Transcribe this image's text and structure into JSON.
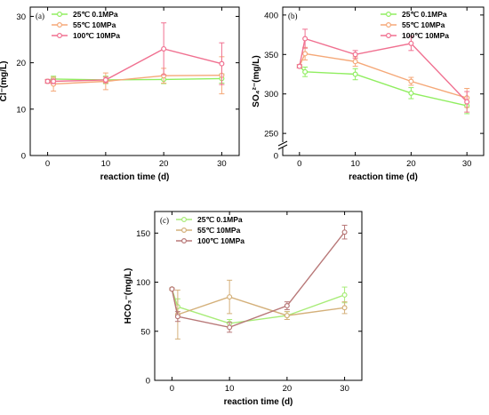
{
  "chart_data": [
    {
      "type": "line",
      "panel_label": "(a)",
      "xlabel": "reaction time (d)",
      "ylabel": "Cl⁻(mg/L)",
      "x_ticks": [
        "0",
        "10",
        "20",
        "30"
      ],
      "y_ticks": [
        "0",
        "10",
        "20",
        "30"
      ],
      "xlim": [
        -3,
        33
      ],
      "ylim": [
        0,
        32
      ],
      "y_break": false,
      "legend_position": "top-left",
      "series": [
        {
          "name": "25℃ 0.1MPa",
          "color": "#90ee60",
          "x": [
            0,
            1,
            10,
            20,
            30
          ],
          "y": [
            16.0,
            16.5,
            16.3,
            16.4,
            16.6
          ],
          "err": [
            0.4,
            0.6,
            0.8,
            0.9,
            1.0
          ]
        },
        {
          "name": "55℃ 10MPa",
          "color": "#f5a878",
          "x": [
            0,
            1,
            10,
            20,
            30
          ],
          "y": [
            16.0,
            15.4,
            16.0,
            17.2,
            17.3
          ],
          "err": [
            0.4,
            1.5,
            1.8,
            1.6,
            4.0
          ]
        },
        {
          "name": "100℃ 10MPa",
          "color": "#f07090",
          "x": [
            0,
            1,
            10,
            20,
            30
          ],
          "y": [
            16.0,
            16.0,
            16.3,
            23.0,
            19.8
          ],
          "err": [
            0.4,
            0.5,
            0.6,
            5.6,
            4.5
          ]
        }
      ]
    },
    {
      "type": "line",
      "panel_label": "(b)",
      "xlabel": "reaction time (d)",
      "ylabel": "SO₄²⁻(mg/L)",
      "x_ticks": [
        "0",
        "10",
        "20",
        "30"
      ],
      "y_ticks": [
        "0",
        "250",
        "300",
        "350",
        "400"
      ],
      "xlim": [
        -3,
        33
      ],
      "ylim": [
        222,
        410
      ],
      "y_break": true,
      "legend_position": "top-right",
      "series": [
        {
          "name": "25℃ 0.1MPa",
          "color": "#90ee60",
          "x": [
            0,
            1,
            10,
            20,
            30
          ],
          "y": [
            335,
            328,
            325,
            301,
            285
          ],
          "err": [
            2,
            6,
            7,
            7,
            10
          ]
        },
        {
          "name": "55℃ 10MPa",
          "color": "#f5a878",
          "x": [
            0,
            1,
            10,
            20,
            30
          ],
          "y": [
            335,
            351,
            341,
            316,
            295
          ],
          "err": [
            2,
            8,
            6,
            5,
            12
          ]
        },
        {
          "name": "100℃ 10MPa",
          "color": "#f07090",
          "x": [
            0,
            1,
            10,
            20,
            30
          ],
          "y": [
            335,
            370,
            350,
            364,
            290
          ],
          "err": [
            2,
            12,
            5,
            9,
            13
          ]
        }
      ]
    },
    {
      "type": "line",
      "panel_label": "(c)",
      "xlabel": "reaction time (d)",
      "ylabel": "HCO₃⁻(mg/L)",
      "x_ticks": [
        "0",
        "10",
        "20",
        "30"
      ],
      "y_ticks": [
        "0",
        "50",
        "100",
        "150"
      ],
      "xlim": [
        -3,
        33
      ],
      "ylim": [
        0,
        172
      ],
      "y_break": false,
      "legend_position": "top-left",
      "series": [
        {
          "name": "25℃ 0.1MPa",
          "color": "#a8ec78",
          "x": [
            0,
            1,
            10,
            20,
            30
          ],
          "y": [
            93,
            75,
            58,
            66,
            87
          ],
          "err": [
            1,
            8,
            4,
            4,
            8
          ]
        },
        {
          "name": "55℃ 10MPa",
          "color": "#d4b07a",
          "x": [
            0,
            1,
            10,
            20,
            30
          ],
          "y": [
            93,
            67,
            85,
            66,
            74
          ],
          "err": [
            1,
            25,
            17,
            4,
            6
          ]
        },
        {
          "name": "100℃ 10MPa",
          "color": "#b87878",
          "x": [
            0,
            1,
            10,
            20,
            30
          ],
          "y": [
            93,
            65,
            54,
            76,
            151
          ],
          "err": [
            1,
            5,
            5,
            4,
            7
          ]
        }
      ]
    }
  ]
}
